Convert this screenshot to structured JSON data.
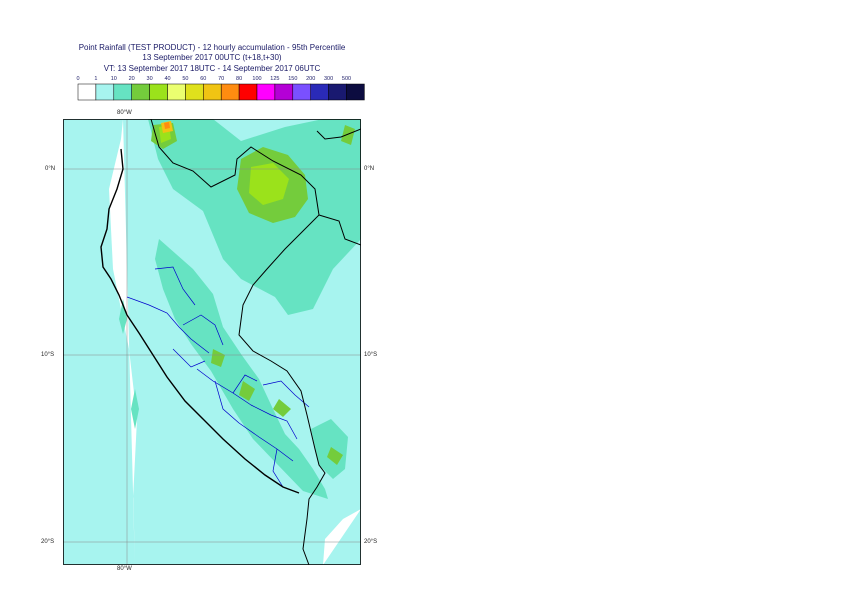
{
  "header": {
    "title": "Point Rainfall (TEST PRODUCT) - 12 hourly accumulation - 95th Percentile",
    "base_time": "13 September 2017 00UTC (t+18,t+30)",
    "valid_time": "VT: 13 September 2017 18UTC - 14 September 2017 06UTC"
  },
  "legend": {
    "ticks": [
      "0",
      "1",
      "10",
      "20",
      "30",
      "40",
      "50",
      "60",
      "70",
      "80",
      "100",
      "125",
      "150",
      "200",
      "300",
      "500"
    ],
    "colors": [
      "#ffffff",
      "#a7f4ef",
      "#66e3c2",
      "#74cc3c",
      "#9be21b",
      "#ebff70",
      "#dfe11c",
      "#f0c413",
      "#ff8c10",
      "#ff0000",
      "#ff00ff",
      "#b400d6",
      "#7a50ff",
      "#2a2ab8",
      "#191970",
      "#0c0c40"
    ]
  },
  "map": {
    "lat_labels": [
      "0°N",
      "10°S",
      "20°S"
    ],
    "lon_labels": [
      "80°W"
    ],
    "bottom_lon_label": "80°W",
    "colors": {
      "bg_low": "#a7f4ef",
      "band_10": "#66e3c2",
      "band_20": "#74cc3c",
      "band_30": "#9be21b",
      "band_60": "#f0c413",
      "band_70": "#ff8c10",
      "country": "#000000",
      "admin": "#0000cc"
    }
  }
}
